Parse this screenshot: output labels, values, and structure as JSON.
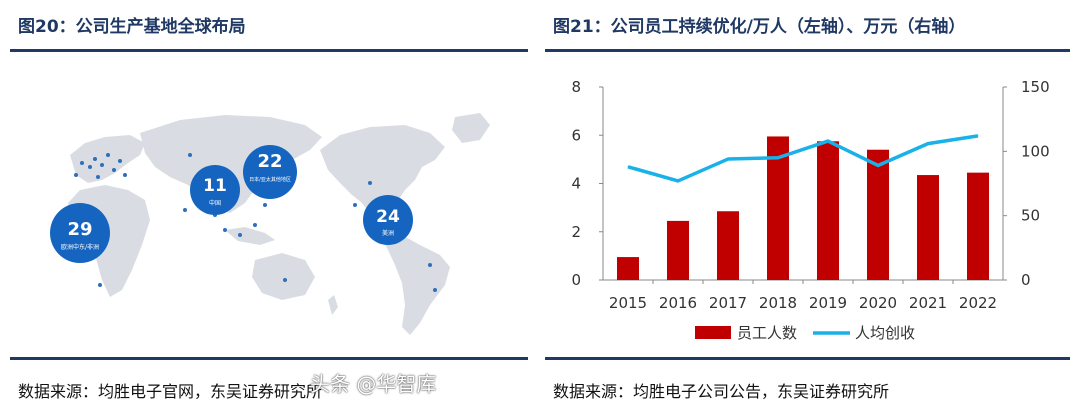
{
  "left_panel": {
    "title": "图20：公司生产基地全球布局",
    "source": "数据来源：均胜电子官网，东吴证券研究所",
    "map": {
      "bubbles": [
        {
          "number": "29",
          "label": "欧洲中东/非洲"
        },
        {
          "number": "11",
          "label": "中国"
        },
        {
          "number": "22",
          "label": "日本/亚太其他地区"
        },
        {
          "number": "24",
          "label": "美洲"
        }
      ],
      "colors": {
        "land": "#d9dde3",
        "bubble": "#1565c0",
        "marker": "#2f6fb8"
      }
    }
  },
  "right_panel": {
    "title": "图21：公司员工持续优化/万人（左轴）、万元（右轴）",
    "source": "数据来源：均胜电子公司公告，东吴证券研究所",
    "watermark": "头条 @华智库"
  },
  "chart_data": {
    "type": "bar",
    "categories": [
      "2015",
      "2016",
      "2017",
      "2018",
      "2019",
      "2020",
      "2021",
      "2022"
    ],
    "series": [
      {
        "name": "员工人数",
        "type": "bar",
        "axis": "left",
        "color": "#c00000",
        "values": [
          0.95,
          2.45,
          2.85,
          5.95,
          5.75,
          5.4,
          4.35,
          4.45
        ]
      },
      {
        "name": "人均创收",
        "type": "line",
        "axis": "right",
        "color": "#19b2e8",
        "values": [
          88,
          77,
          94,
          95,
          108,
          89,
          106,
          112
        ]
      }
    ],
    "y_left": {
      "min": 0,
      "max": 8,
      "ticks": [
        "0",
        "2",
        "4",
        "6",
        "8"
      ]
    },
    "y_right": {
      "min": 0,
      "max": 150,
      "ticks": [
        "0",
        "50",
        "100",
        "150"
      ]
    },
    "legend": "bottom",
    "grid": false
  }
}
